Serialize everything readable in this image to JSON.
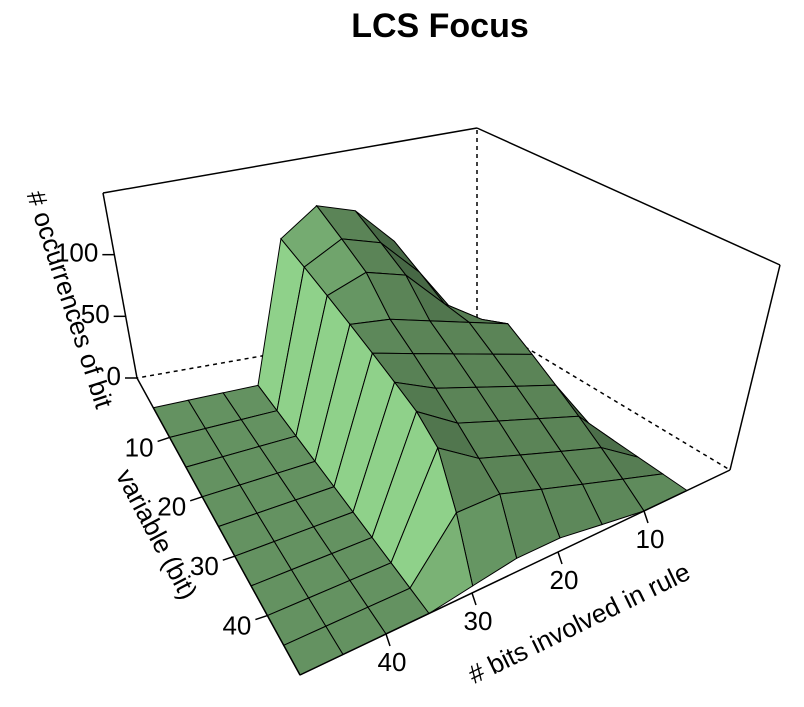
{
  "chart_data": {
    "type": "surface",
    "title": "LCS Focus",
    "xlabel": "# bits involved in rule",
    "ylabel": "variable (bit)",
    "zlabel": "# occurrences of bit",
    "x": [
      5,
      10,
      15,
      20,
      25,
      30,
      35,
      40,
      45,
      50
    ],
    "y": [
      5,
      10,
      15,
      20,
      25,
      30,
      35,
      40,
      45,
      50
    ],
    "z": [
      [
        5,
        30,
        90,
        120,
        130,
        110,
        0,
        0,
        0,
        0
      ],
      [
        5,
        40,
        80,
        110,
        120,
        105,
        0,
        0,
        0,
        0
      ],
      [
        5,
        50,
        70,
        100,
        110,
        100,
        0,
        0,
        0,
        0
      ],
      [
        0,
        60,
        70,
        80,
        90,
        95,
        0,
        0,
        0,
        0
      ],
      [
        0,
        50,
        60,
        70,
        80,
        90,
        0,
        0,
        0,
        0
      ],
      [
        0,
        40,
        50,
        60,
        70,
        85,
        0,
        0,
        0,
        0
      ],
      [
        0,
        30,
        40,
        50,
        60,
        80,
        0,
        0,
        0,
        0
      ],
      [
        0,
        20,
        30,
        40,
        50,
        70,
        0,
        0,
        0,
        0
      ],
      [
        0,
        10,
        20,
        30,
        40,
        40,
        0,
        0,
        0,
        0
      ],
      [
        0,
        0,
        5,
        10,
        10,
        5,
        0,
        0,
        0,
        0
      ]
    ],
    "xlim": [
      0,
      50
    ],
    "ylim": [
      0,
      50
    ],
    "zlim": [
      0,
      150
    ],
    "xticks": [
      10,
      20,
      30,
      40
    ],
    "yticks": [
      10,
      20,
      30,
      40
    ],
    "zticks": [
      0,
      50,
      100
    ],
    "color": "#8fd18a"
  }
}
